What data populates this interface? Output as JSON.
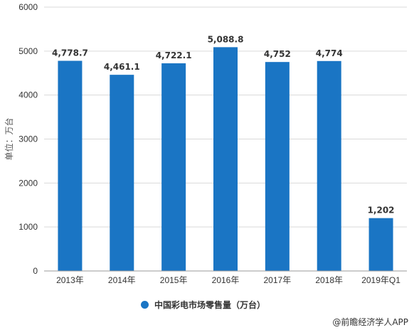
{
  "chart_data": {
    "type": "bar",
    "categories": [
      "2013年",
      "2014年",
      "2015年",
      "2016年",
      "2017年",
      "2018年",
      "2019年Q1"
    ],
    "series": [
      {
        "name": "中国彩电市场零售量（万台）",
        "values": [
          4778.7,
          4461.1,
          4722.1,
          5088.8,
          4752,
          4774,
          1202
        ],
        "labels": [
          "4,778.7",
          "4,461.1",
          "4,722.1",
          "5,088.8",
          "4,752",
          "4,774",
          "1,202"
        ]
      }
    ],
    "ylabel": "单位：万台",
    "ylim": [
      0,
      6000
    ],
    "yticks": [
      0,
      1000,
      2000,
      3000,
      4000,
      5000,
      6000
    ],
    "grid": true,
    "legend_position": "bottom",
    "bar_color": "#1a75c4"
  },
  "legend": {
    "label": "中国彩电市场零售量（万台）"
  },
  "source": "@前瞻经济学人APP"
}
